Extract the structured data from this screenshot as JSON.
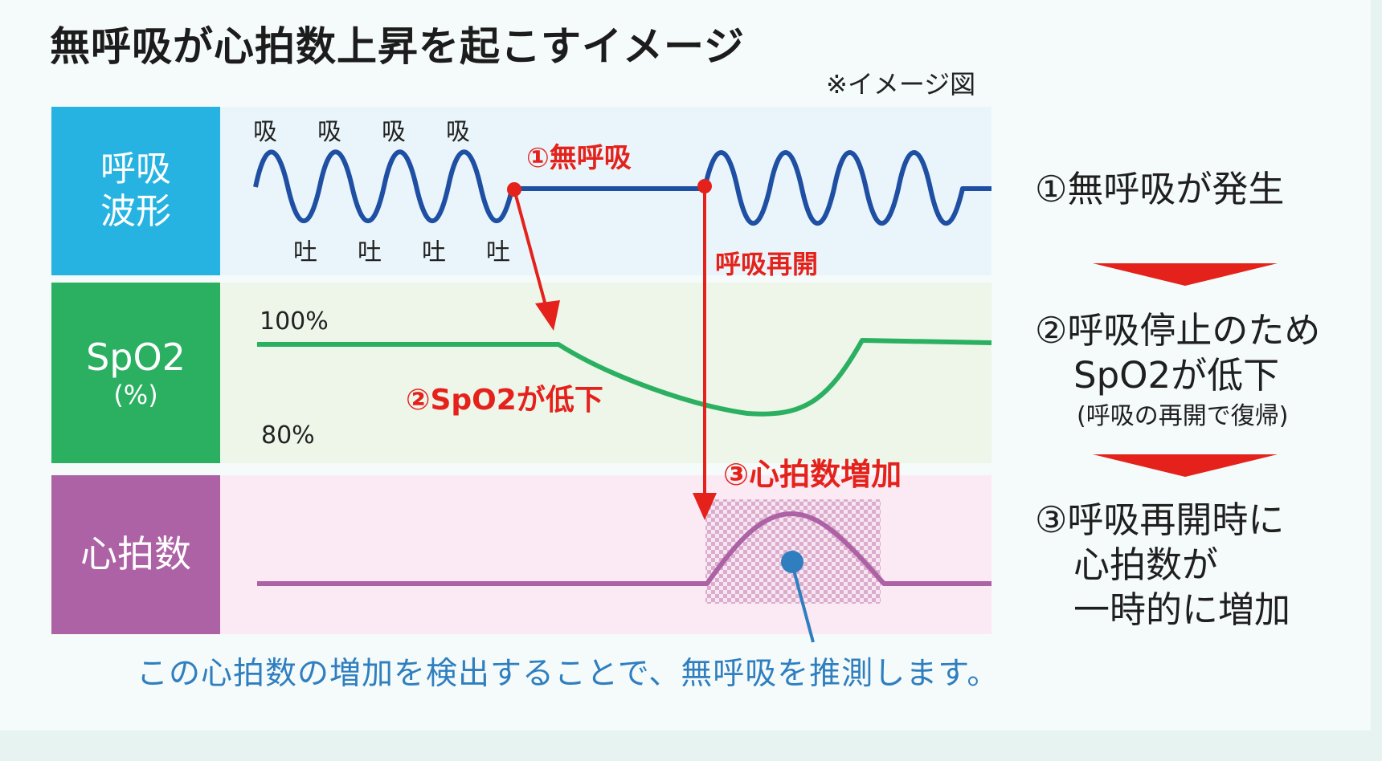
{
  "title": "無呼吸が心拍数上昇を起こすイメージ",
  "note": "※イメージ図",
  "rows": {
    "breath": {
      "label_line1": "呼吸",
      "label_line2": "波形"
    },
    "spo2": {
      "label": "SpO2",
      "unit": "(%)"
    },
    "heart_rate": {
      "label": "心拍数"
    }
  },
  "waveform": {
    "inhale": "吸",
    "exhale": "吐",
    "apnea_label": "①無呼吸",
    "resume_label": "呼吸再開"
  },
  "spo2_axis": {
    "top": "100%",
    "bottom": "80%"
  },
  "spo2_event": "②SpO2が低下",
  "hr_event": "③心拍数増加",
  "caption": "この心拍数の増加を検出することで、無呼吸を推測します。",
  "steps": {
    "step1": "①無呼吸が発生",
    "step2_line1": "②呼吸停止のため",
    "step2_line2": "SpO2が低下",
    "step2_sub": "(呼吸の再開で復帰)",
    "step3_line1": "③呼吸再開時に",
    "step3_line2": "心拍数が",
    "step3_line3": "一時的に増加"
  },
  "colors": {
    "breath": "#26b3e2",
    "spo2": "#2bb062",
    "heart_rate": "#ad62a5",
    "wave": "#1f4fa3",
    "event": "#e4221b",
    "caption": "#2f7fc0"
  }
}
